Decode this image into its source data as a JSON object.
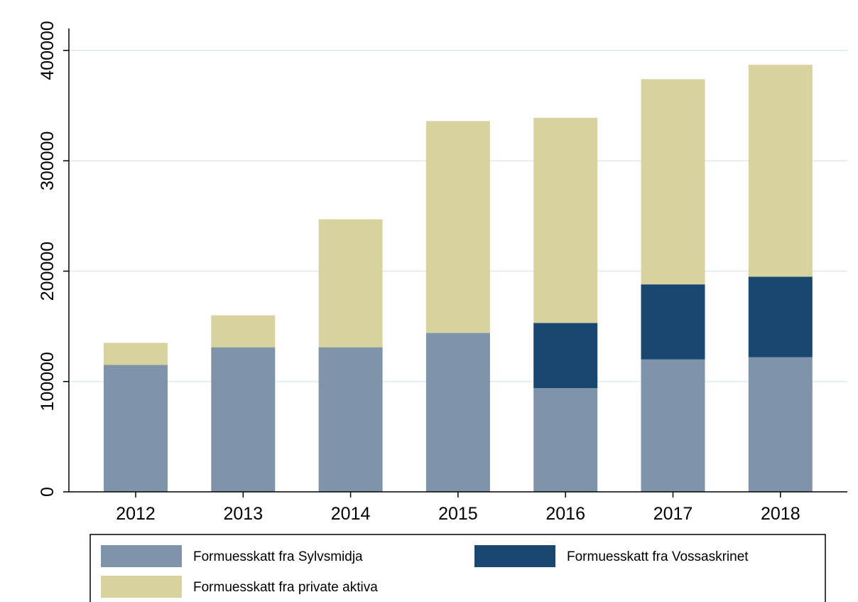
{
  "chart_data": {
    "type": "stacked_bar",
    "categories": [
      "2012",
      "2013",
      "2014",
      "2015",
      "2016",
      "2017",
      "2018"
    ],
    "series": [
      {
        "name": "Formuesskatt fra Sylvsmidja",
        "color": "#7f94ab",
        "values": [
          115000,
          131000,
          131000,
          144000,
          94000,
          120000,
          122000
        ]
      },
      {
        "name": "Formuesskatt fra Vossaskrinet",
        "color": "#1a476f",
        "values": [
          0,
          0,
          0,
          0,
          59000,
          68000,
          73000
        ]
      },
      {
        "name": "Formuesskatt fra private aktiva",
        "color": "#d8d29f",
        "values": [
          20000,
          29000,
          116000,
          192000,
          186000,
          186000,
          192000
        ]
      }
    ],
    "ylim": [
      0,
      400000
    ],
    "yticks": [
      0,
      100000,
      200000,
      300000,
      400000
    ],
    "grid": true
  }
}
